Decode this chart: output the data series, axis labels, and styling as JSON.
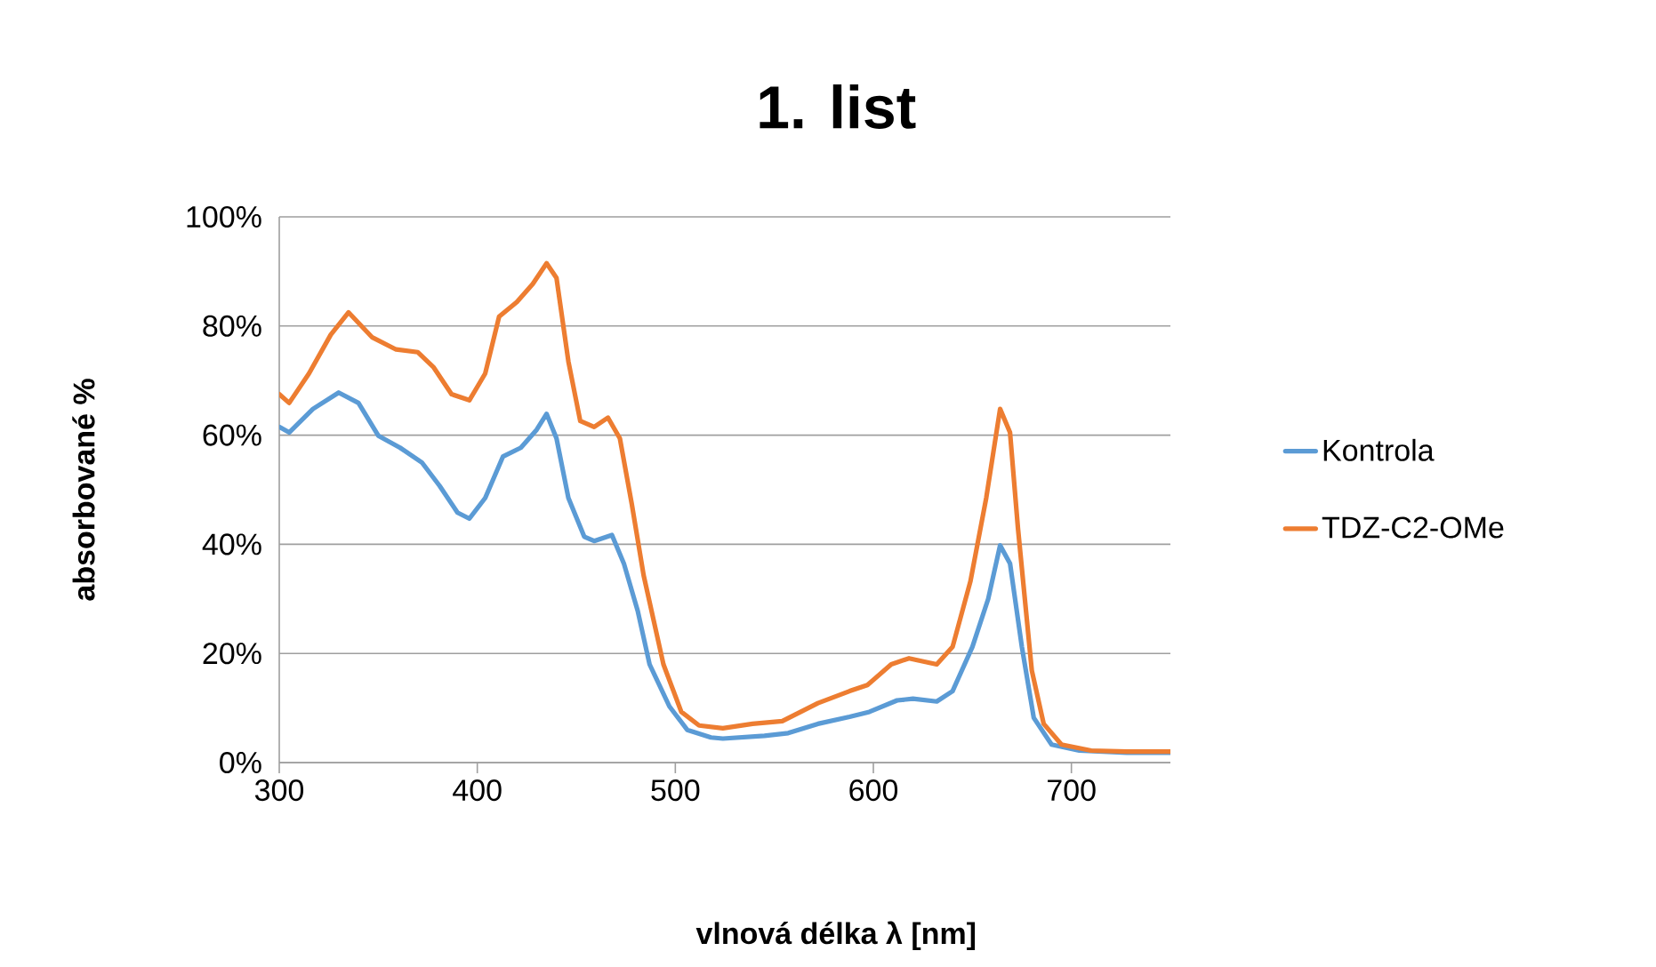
{
  "chart_data": {
    "type": "line",
    "title": "1. list",
    "xlabel": "vlnová délka λ [nm]",
    "ylabel": "absorbované %",
    "xlim": [
      300,
      750
    ],
    "xticks": [
      300,
      400,
      500,
      600,
      700
    ],
    "ylim": [
      0,
      100
    ],
    "yticks": [
      {
        "value": 0,
        "label": "0%"
      },
      {
        "value": 20,
        "label": "20%"
      },
      {
        "value": 40,
        "label": "40%"
      },
      {
        "value": 60,
        "label": "60%"
      },
      {
        "value": 80,
        "label": "80%"
      },
      {
        "value": 100,
        "label": "100%"
      }
    ],
    "grid": "y",
    "legend": "right",
    "series": [
      {
        "name": "Kontrola",
        "color": "#5b9bd5",
        "x": [
          300,
          305,
          317,
          330,
          340,
          350,
          361,
          372,
          381,
          390,
          396,
          404,
          413,
          422,
          430,
          435,
          440,
          446,
          454,
          459,
          468,
          474,
          481,
          487,
          497,
          506,
          518,
          524,
          545,
          557,
          572,
          588,
          598,
          612,
          620,
          632,
          640,
          650,
          658,
          664,
          669,
          675,
          681,
          690,
          704,
          728,
          750
        ],
        "values": [
          61.5,
          60.5,
          64.8,
          67.8,
          65.9,
          59.9,
          57.7,
          55.0,
          50.7,
          45.8,
          44.7,
          48.5,
          56.1,
          57.7,
          61.0,
          63.9,
          59.4,
          48.5,
          41.4,
          40.6,
          41.7,
          36.5,
          27.8,
          18.0,
          10.3,
          6.0,
          4.6,
          4.4,
          4.9,
          5.4,
          7.1,
          8.4,
          9.3,
          11.4,
          11.7,
          11.2,
          13.1,
          21.2,
          30.0,
          39.8,
          36.5,
          21.2,
          8.2,
          3.3,
          2.2,
          1.8,
          1.8
        ]
      },
      {
        "name": "TDZ-C2-OMe",
        "color": "#ed7d31",
        "x": [
          300,
          305,
          315,
          326,
          335,
          347,
          359,
          370,
          378,
          387,
          396,
          404,
          411,
          420,
          428,
          435,
          440,
          446,
          452,
          459,
          466,
          472,
          478,
          484,
          494,
          503,
          512,
          524,
          539,
          554,
          572,
          588,
          597,
          609,
          618,
          632,
          640,
          649,
          657,
          664,
          669,
          673,
          680,
          686,
          695,
          710,
          728,
          750
        ],
        "values": [
          67.5,
          65.9,
          71.3,
          78.4,
          82.5,
          77.9,
          75.7,
          75.2,
          72.4,
          67.5,
          66.4,
          71.3,
          81.7,
          84.4,
          87.7,
          91.5,
          88.8,
          73.5,
          62.6,
          61.5,
          63.2,
          59.4,
          47.4,
          34.3,
          18.0,
          9.3,
          6.8,
          6.3,
          7.1,
          7.6,
          10.9,
          13.1,
          14.2,
          18.0,
          19.1,
          18.0,
          21.2,
          33.2,
          48.5,
          64.8,
          60.5,
          43.0,
          16.9,
          7.1,
          3.3,
          2.2,
          2.0,
          2.0
        ]
      }
    ]
  }
}
